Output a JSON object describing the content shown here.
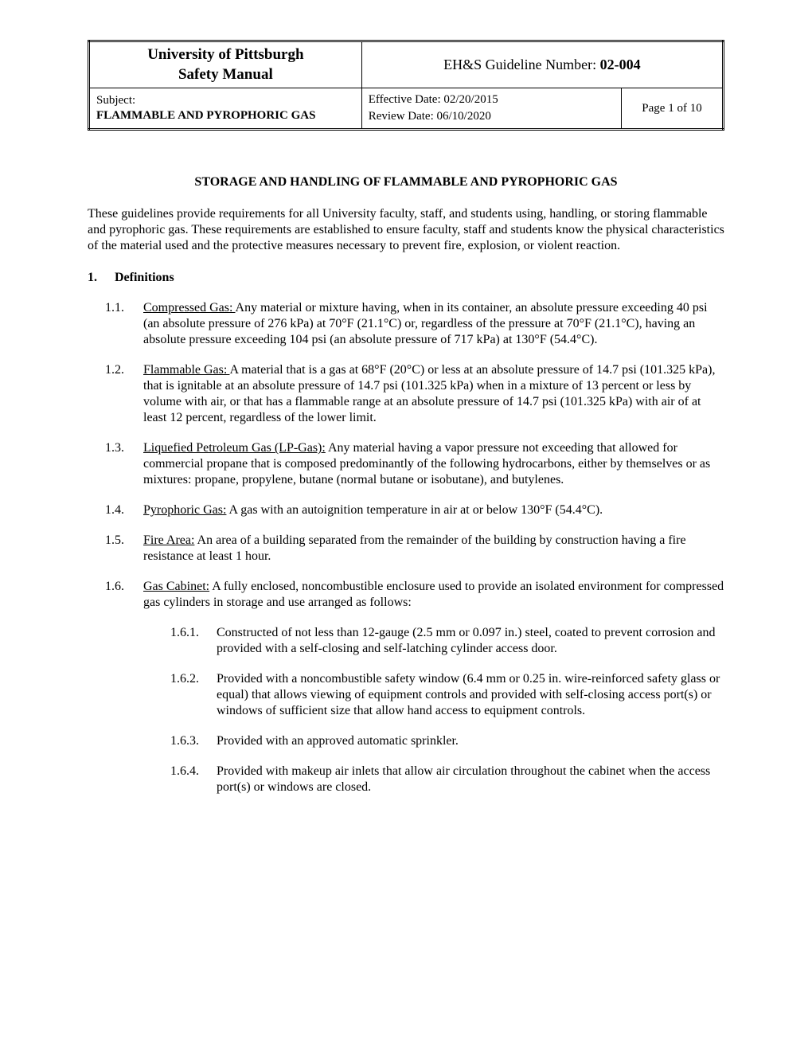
{
  "header": {
    "org_line1": "University of Pittsburgh",
    "org_line2": "Safety Manual",
    "guideline_label": "EH&S Guideline Number:  ",
    "guideline_number": "02-004",
    "subject_label": "Subject:",
    "subject_value": "FLAMMABLE AND PYROPHORIC GAS",
    "effective_date_label": "Effective Date: ",
    "effective_date": "02/20/2015",
    "review_date_label": "Review Date:  ",
    "review_date": "06/10/2020",
    "page_label": "Page 1 of 10"
  },
  "title": "STORAGE AND HANDLING OF FLAMMABLE AND PYROPHORIC GAS",
  "intro": "These guidelines provide requirements for all University faculty, staff, and students using, handling, or storing flammable and pyrophoric gas.  These requirements are established to ensure faculty, staff and students know the physical characteristics of the material used and the protective measures necessary to prevent fire, explosion, or violent reaction.",
  "section": {
    "num": "1.",
    "title": "Definitions"
  },
  "defs": [
    {
      "num": "1.1.",
      "term": "Compressed Gas:  ",
      "text": "Any material or mixture having, when in its container, an absolute pressure exceeding 40 psi (an absolute pressure of 276 kPa) at 70°F (21.1°C) or, regardless of the pressure at 70°F (21.1°C), having an absolute pressure exceeding 104 psi (an absolute pressure of 717 kPa) at 130°F (54.4°C)."
    },
    {
      "num": "1.2.",
      "term": "Flammable Gas:  ",
      "text": "A material that is a gas at 68°F (20°C) or less at an absolute pressure of 14.7 psi (101.325 kPa), that is ignitable at an absolute pressure of 14.7 psi (101.325 kPa) when in a mixture of 13 percent or less by volume with air, or that has a flammable range at an absolute pressure of 14.7 psi (101.325 kPa) with air of at least 12 percent, regardless of the lower limit."
    },
    {
      "num": "1.3.",
      "term": "Liquefied Petroleum Gas (LP-Gas):",
      "text": "  Any material having a vapor pressure not exceeding that allowed for commercial propane that is composed predominantly of the following hydrocarbons, either by themselves or as mixtures:  propane, propylene, butane (normal butane or isobutane), and butylenes."
    },
    {
      "num": "1.4.",
      "term": "Pyrophoric Gas:",
      "text": "  A gas with an autoignition temperature in air at or below 130°F (54.4°C)."
    },
    {
      "num": "1.5.",
      "term": "Fire Area:",
      "text": "  An area of a building separated from the remainder of the building by construction having a fire resistance at least 1 hour."
    },
    {
      "num": "1.6.",
      "term": "Gas Cabinet:",
      "text": "  A fully enclosed, noncombustible enclosure used to provide an isolated environment for compressed gas cylinders in storage and use arranged as follows:"
    }
  ],
  "subdefs": [
    {
      "num": "1.6.1.",
      "text": "Constructed of not less than 12-gauge (2.5 mm or 0.097 in.) steel, coated to prevent corrosion and provided with a self-closing and self-latching cylinder access door."
    },
    {
      "num": "1.6.2.",
      "text": "Provided with a noncombustible safety window (6.4 mm or 0.25 in. wire-reinforced safety glass or equal) that allows viewing of equipment controls and provided with self-closing access port(s) or windows of sufficient size that allow hand access to equipment controls."
    },
    {
      "num": "1.6.3.",
      "text": "Provided with an approved automatic sprinkler."
    },
    {
      "num": "1.6.4.",
      "text": "Provided with makeup air inlets that allow air circulation throughout the cabinet when the access port(s) or windows are closed."
    }
  ]
}
